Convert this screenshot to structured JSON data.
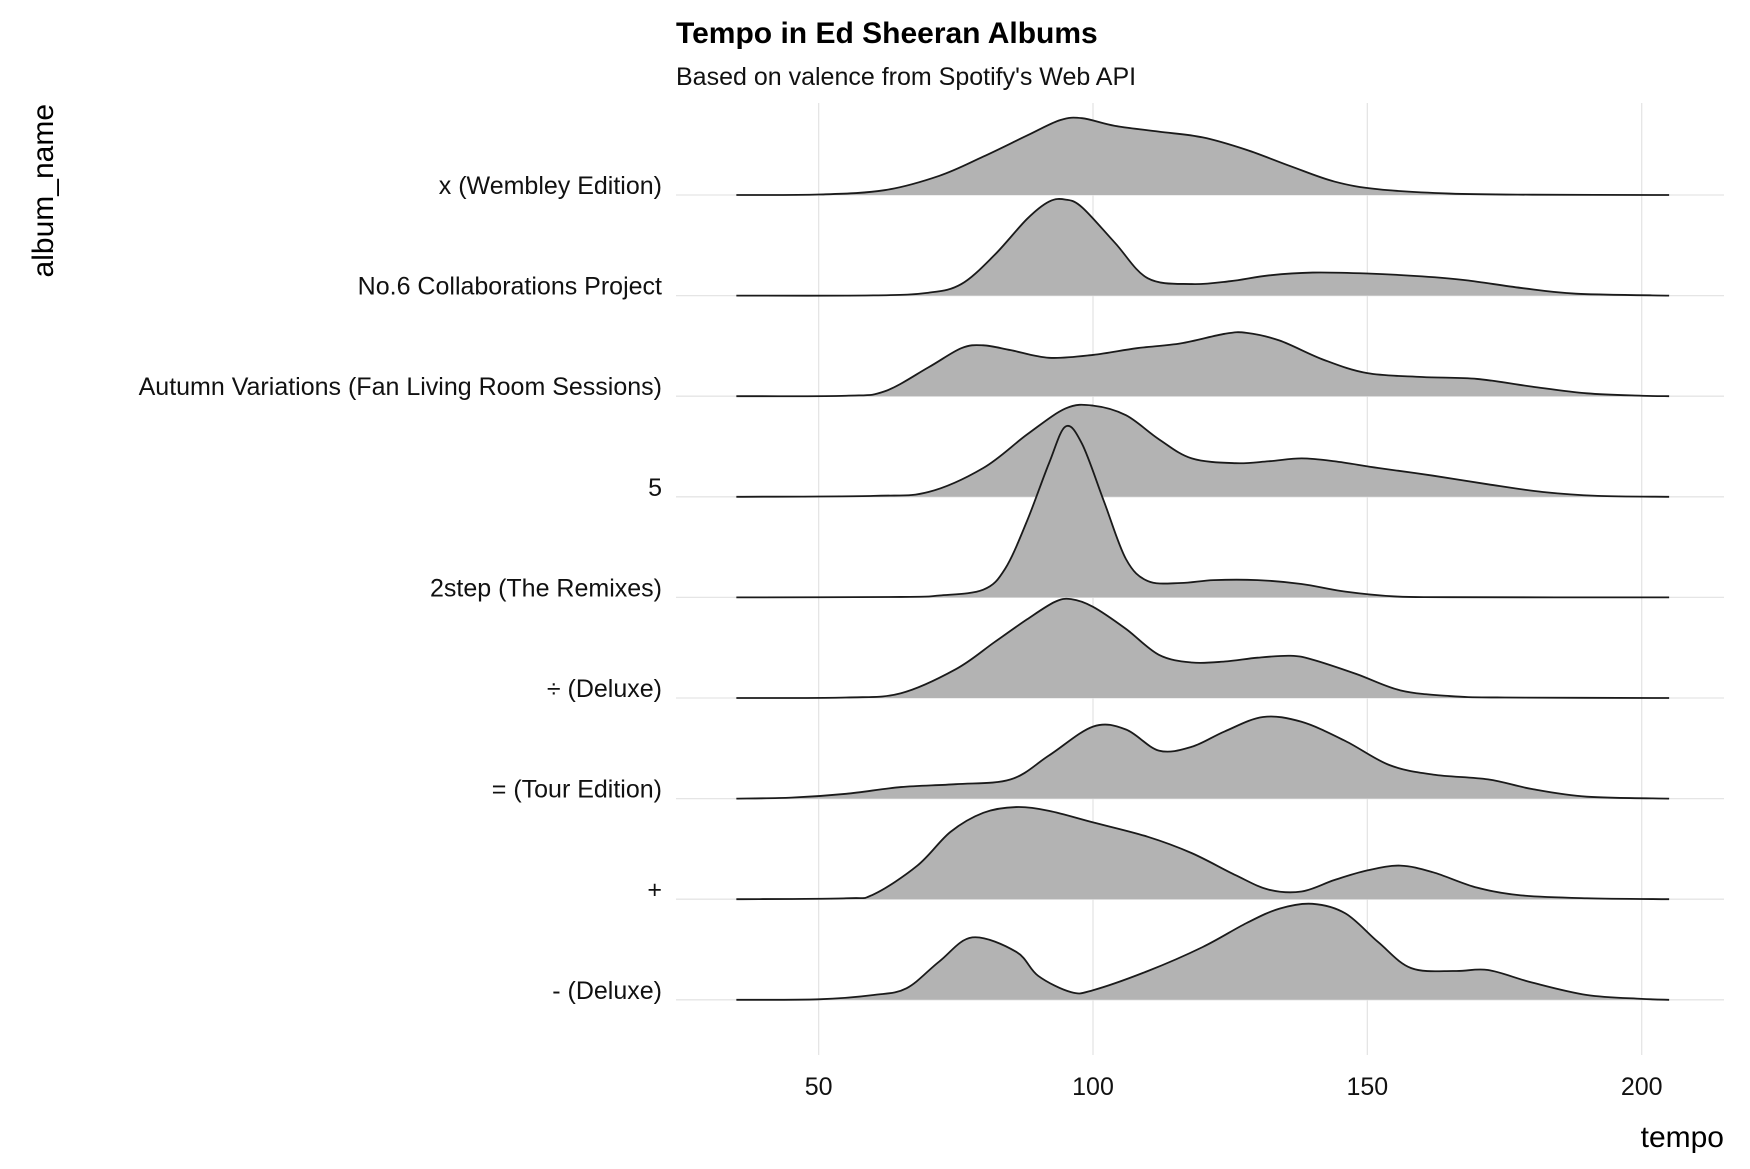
{
  "chart_data": {
    "type": "ridgeline",
    "title": "Tempo in Ed Sheeran Albums",
    "subtitle": "Based on valence from Spotify's Web API",
    "xlabel": "tempo",
    "ylabel": "album_name",
    "xlim": [
      24,
      215
    ],
    "xticks": [
      50,
      100,
      150,
      200
    ],
    "grid": true,
    "fill_color": "#b3b3b3",
    "line_color": "#1a1a1a",
    "series": [
      {
        "name": "- (Deluxe)",
        "points": [
          [
            35,
            0
          ],
          [
            50,
            0.005
          ],
          [
            60,
            0.05
          ],
          [
            66,
            0.12
          ],
          [
            72,
            0.4
          ],
          [
            78,
            0.65
          ],
          [
            86,
            0.5
          ],
          [
            90,
            0.25
          ],
          [
            96,
            0.08
          ],
          [
            100,
            0.1
          ],
          [
            110,
            0.3
          ],
          [
            120,
            0.55
          ],
          [
            128,
            0.8
          ],
          [
            134,
            0.95
          ],
          [
            140,
            1.0
          ],
          [
            146,
            0.9
          ],
          [
            152,
            0.6
          ],
          [
            158,
            0.33
          ],
          [
            166,
            0.3
          ],
          [
            172,
            0.31
          ],
          [
            180,
            0.18
          ],
          [
            190,
            0.05
          ],
          [
            200,
            0.01
          ],
          [
            205,
            0
          ]
        ]
      },
      {
        "name": "+",
        "points": [
          [
            35,
            0
          ],
          [
            55,
            0.01
          ],
          [
            60,
            0.05
          ],
          [
            68,
            0.35
          ],
          [
            74,
            0.7
          ],
          [
            80,
            0.9
          ],
          [
            86,
            0.96
          ],
          [
            92,
            0.92
          ],
          [
            100,
            0.8
          ],
          [
            110,
            0.65
          ],
          [
            118,
            0.48
          ],
          [
            126,
            0.25
          ],
          [
            132,
            0.1
          ],
          [
            138,
            0.08
          ],
          [
            144,
            0.2
          ],
          [
            150,
            0.3
          ],
          [
            156,
            0.35
          ],
          [
            162,
            0.28
          ],
          [
            170,
            0.12
          ],
          [
            178,
            0.04
          ],
          [
            190,
            0.01
          ],
          [
            205,
            0
          ]
        ]
      },
      {
        "name": "= (Tour Edition)",
        "points": [
          [
            35,
            0
          ],
          [
            45,
            0.01
          ],
          [
            55,
            0.05
          ],
          [
            65,
            0.12
          ],
          [
            75,
            0.15
          ],
          [
            85,
            0.2
          ],
          [
            92,
            0.45
          ],
          [
            100,
            0.75
          ],
          [
            106,
            0.72
          ],
          [
            112,
            0.5
          ],
          [
            118,
            0.54
          ],
          [
            124,
            0.7
          ],
          [
            131,
            0.85
          ],
          [
            138,
            0.8
          ],
          [
            146,
            0.6
          ],
          [
            154,
            0.35
          ],
          [
            162,
            0.25
          ],
          [
            172,
            0.2
          ],
          [
            180,
            0.1
          ],
          [
            190,
            0.02
          ],
          [
            205,
            0
          ]
        ]
      },
      {
        "name": "÷ (Deluxe)",
        "points": [
          [
            35,
            0
          ],
          [
            55,
            0.005
          ],
          [
            65,
            0.05
          ],
          [
            75,
            0.3
          ],
          [
            82,
            0.58
          ],
          [
            88,
            0.82
          ],
          [
            93,
            1.0
          ],
          [
            96,
            1.03
          ],
          [
            100,
            0.95
          ],
          [
            106,
            0.72
          ],
          [
            112,
            0.45
          ],
          [
            118,
            0.37
          ],
          [
            124,
            0.38
          ],
          [
            130,
            0.42
          ],
          [
            136,
            0.44
          ],
          [
            140,
            0.4
          ],
          [
            148,
            0.25
          ],
          [
            156,
            0.08
          ],
          [
            165,
            0.02
          ],
          [
            175,
            0.005
          ],
          [
            205,
            0
          ]
        ]
      },
      {
        "name": "2step (The Remixes)",
        "points": [
          [
            35,
            0
          ],
          [
            65,
            0.005
          ],
          [
            72,
            0.02
          ],
          [
            80,
            0.08
          ],
          [
            84,
            0.3
          ],
          [
            88,
            0.8
          ],
          [
            92,
            1.4
          ],
          [
            95,
            1.78
          ],
          [
            98,
            1.6
          ],
          [
            102,
            1.0
          ],
          [
            106,
            0.4
          ],
          [
            110,
            0.17
          ],
          [
            116,
            0.15
          ],
          [
            122,
            0.18
          ],
          [
            130,
            0.18
          ],
          [
            138,
            0.14
          ],
          [
            146,
            0.06
          ],
          [
            155,
            0.01
          ],
          [
            165,
            0.002
          ],
          [
            205,
            0
          ]
        ]
      },
      {
        "name": "5",
        "points": [
          [
            35,
            0
          ],
          [
            60,
            0.01
          ],
          [
            70,
            0.05
          ],
          [
            80,
            0.3
          ],
          [
            88,
            0.65
          ],
          [
            95,
            0.92
          ],
          [
            100,
            0.95
          ],
          [
            106,
            0.85
          ],
          [
            112,
            0.6
          ],
          [
            118,
            0.4
          ],
          [
            126,
            0.35
          ],
          [
            132,
            0.37
          ],
          [
            138,
            0.4
          ],
          [
            144,
            0.37
          ],
          [
            152,
            0.3
          ],
          [
            162,
            0.22
          ],
          [
            172,
            0.13
          ],
          [
            182,
            0.05
          ],
          [
            192,
            0.01
          ],
          [
            205,
            0
          ]
        ]
      },
      {
        "name": "Autumn Variations (Fan Living Room Sessions)",
        "points": [
          [
            35,
            0
          ],
          [
            55,
            0.005
          ],
          [
            62,
            0.05
          ],
          [
            70,
            0.3
          ],
          [
            76,
            0.5
          ],
          [
            80,
            0.53
          ],
          [
            85,
            0.48
          ],
          [
            92,
            0.4
          ],
          [
            100,
            0.43
          ],
          [
            108,
            0.5
          ],
          [
            116,
            0.55
          ],
          [
            124,
            0.65
          ],
          [
            128,
            0.66
          ],
          [
            134,
            0.58
          ],
          [
            142,
            0.38
          ],
          [
            150,
            0.24
          ],
          [
            160,
            0.2
          ],
          [
            170,
            0.18
          ],
          [
            180,
            0.1
          ],
          [
            190,
            0.03
          ],
          [
            200,
            0.005
          ],
          [
            205,
            0
          ]
        ]
      },
      {
        "name": "No.6 Collaborations Project",
        "points": [
          [
            35,
            0
          ],
          [
            60,
            0.002
          ],
          [
            70,
            0.03
          ],
          [
            76,
            0.12
          ],
          [
            82,
            0.42
          ],
          [
            88,
            0.8
          ],
          [
            92,
            0.98
          ],
          [
            95,
            1.0
          ],
          [
            98,
            0.92
          ],
          [
            104,
            0.55
          ],
          [
            110,
            0.18
          ],
          [
            118,
            0.12
          ],
          [
            125,
            0.15
          ],
          [
            132,
            0.21
          ],
          [
            140,
            0.24
          ],
          [
            150,
            0.23
          ],
          [
            160,
            0.2
          ],
          [
            168,
            0.16
          ],
          [
            178,
            0.08
          ],
          [
            188,
            0.02
          ],
          [
            205,
            0
          ]
        ]
      },
      {
        "name": "x (Wembley Edition)",
        "points": [
          [
            35,
            0
          ],
          [
            50,
            0.005
          ],
          [
            62,
            0.05
          ],
          [
            72,
            0.2
          ],
          [
            80,
            0.4
          ],
          [
            88,
            0.62
          ],
          [
            94,
            0.78
          ],
          [
            98,
            0.8
          ],
          [
            104,
            0.72
          ],
          [
            112,
            0.66
          ],
          [
            120,
            0.6
          ],
          [
            128,
            0.47
          ],
          [
            136,
            0.3
          ],
          [
            144,
            0.14
          ],
          [
            152,
            0.06
          ],
          [
            165,
            0.015
          ],
          [
            180,
            0.003
          ],
          [
            205,
            0
          ]
        ]
      }
    ]
  }
}
